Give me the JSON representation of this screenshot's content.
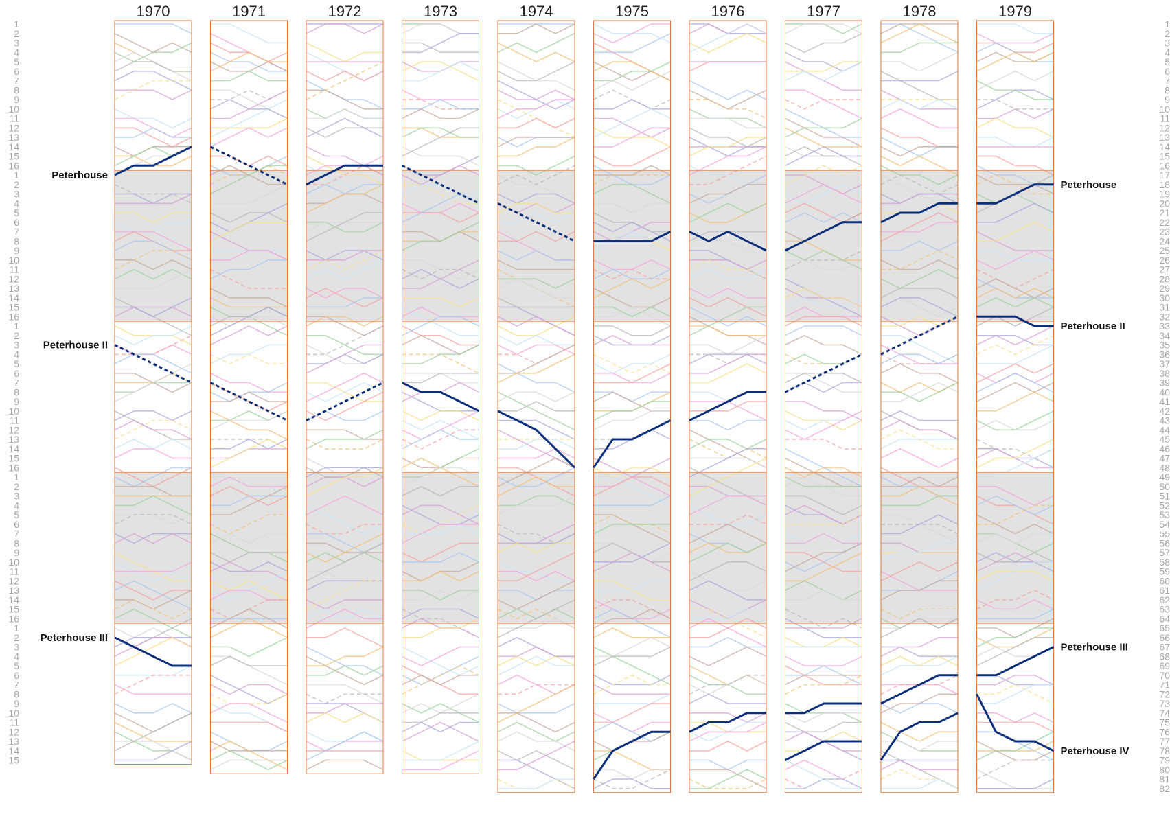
{
  "chart_data": {
    "type": "line",
    "title": "",
    "xlabel": "",
    "ylabel": "",
    "years": [
      "1970",
      "1971",
      "1972",
      "1973",
      "1974",
      "1975",
      "1976",
      "1977",
      "1978",
      "1979"
    ],
    "divisions_per_year": [
      5,
      5,
      5,
      5,
      5,
      5,
      5,
      5,
      5,
      5
    ],
    "boats_per_division": 16,
    "boats_per_year": [
      79,
      80,
      80,
      80,
      82,
      82,
      82,
      82,
      82,
      82
    ],
    "left_axis_ticks": [
      "1",
      "2",
      "3",
      "4",
      "5",
      "6",
      "7",
      "8",
      "9",
      "10",
      "11",
      "12",
      "13",
      "14",
      "15",
      "16"
    ],
    "right_axis_ticks": [
      "1",
      "2",
      "3",
      "4",
      "5",
      "6",
      "7",
      "8",
      "9",
      "10",
      "11",
      "12",
      "13",
      "14",
      "15",
      "16",
      "17",
      "18",
      "19",
      "20",
      "21",
      "22",
      "23",
      "24",
      "25",
      "26",
      "27",
      "28",
      "29",
      "30",
      "31",
      "32",
      "33",
      "34",
      "35",
      "36",
      "37",
      "38",
      "39",
      "40",
      "41",
      "42",
      "43",
      "44",
      "45",
      "46",
      "47",
      "48",
      "49",
      "50",
      "51",
      "52",
      "53",
      "54",
      "55",
      "56",
      "57",
      "58",
      "59",
      "60",
      "61",
      "62",
      "63",
      "64",
      "65",
      "66",
      "67",
      "68",
      "69",
      "70",
      "71",
      "72",
      "73",
      "74",
      "75",
      "76",
      "77",
      "78",
      "79",
      "80",
      "81",
      "82"
    ],
    "series": [
      {
        "name": "Peterhouse",
        "left_label": "Peterhouse",
        "right_label": "Peterhouse",
        "color": "#0b2f7a",
        "segments": [
          {
            "year": "1970",
            "positions": [
              17,
              16,
              16,
              15,
              14
            ]
          },
          {
            "year": "1971",
            "positions": [
              14,
              15,
              16,
              17,
              18
            ]
          },
          {
            "year": "1972",
            "positions": [
              18,
              17,
              16,
              16,
              16
            ]
          },
          {
            "year": "1973",
            "positions": [
              16,
              17,
              18,
              19,
              20
            ]
          },
          {
            "year": "1974",
            "positions": [
              20,
              21,
              22,
              23,
              24
            ]
          },
          {
            "year": "1975",
            "positions": [
              24,
              24,
              24,
              24,
              23
            ]
          },
          {
            "year": "1976",
            "positions": [
              23,
              24,
              23,
              24,
              25
            ]
          },
          {
            "year": "1977",
            "positions": [
              25,
              24,
              23,
              22,
              22
            ]
          },
          {
            "year": "1978",
            "positions": [
              22,
              21,
              21,
              20,
              20
            ]
          },
          {
            "year": "1979",
            "positions": [
              20,
              20,
              19,
              18,
              18
            ]
          }
        ]
      },
      {
        "name": "Peterhouse II",
        "left_label": "Peterhouse II",
        "right_label": "Peterhouse II",
        "color": "#0b2f7a",
        "segments": [
          {
            "year": "1970",
            "positions": [
              35,
              36,
              37,
              38,
              39
            ]
          },
          {
            "year": "1971",
            "positions": [
              39,
              40,
              41,
              42,
              43
            ]
          },
          {
            "year": "1972",
            "positions": [
              43,
              42,
              41,
              40,
              39
            ]
          },
          {
            "year": "1973",
            "positions": [
              39,
              40,
              40,
              41,
              42
            ]
          },
          {
            "year": "1974",
            "positions": [
              42,
              43,
              44,
              46,
              48
            ]
          },
          {
            "year": "1975",
            "positions": [
              48,
              45,
              45,
              44,
              43
            ]
          },
          {
            "year": "1976",
            "positions": [
              43,
              42,
              41,
              40,
              40
            ]
          },
          {
            "year": "1977",
            "positions": [
              40,
              39,
              38,
              37,
              36
            ]
          },
          {
            "year": "1978",
            "positions": [
              36,
              35,
              34,
              33,
              32
            ]
          },
          {
            "year": "1979",
            "positions": [
              32,
              32,
              32,
              33,
              33
            ]
          }
        ]
      },
      {
        "name": "Peterhouse III",
        "left_label": "Peterhouse III",
        "right_label": "Peterhouse III",
        "color": "#0b2f7a",
        "segments": [
          {
            "year": "1970",
            "positions": [
              66,
              67,
              68,
              69,
              69
            ]
          },
          {
            "year": "1977",
            "positions": [
              74,
              74,
              73,
              73,
              73
            ]
          },
          {
            "year": "1978",
            "positions": [
              73,
              72,
              71,
              70,
              70
            ]
          },
          {
            "year": "1979",
            "positions": [
              70,
              70,
              69,
              68,
              67
            ]
          }
        ]
      },
      {
        "name": "Peterhouse IV",
        "left_label": "",
        "right_label": "Peterhouse IV",
        "color": "#0b2f7a",
        "segments": [
          {
            "year": "1975",
            "positions": [
              81,
              78,
              77,
              76,
              76
            ]
          },
          {
            "year": "1976",
            "positions": [
              76,
              75,
              75,
              74,
              74
            ]
          },
          {
            "year": "1977",
            "positions": [
              79,
              78,
              77,
              77,
              77
            ]
          },
          {
            "year": "1978",
            "positions": [
              79,
              76,
              75,
              75,
              74
            ]
          },
          {
            "year": "1979",
            "positions": [
              72,
              76,
              77,
              77,
              78
            ]
          }
        ]
      }
    ]
  }
}
